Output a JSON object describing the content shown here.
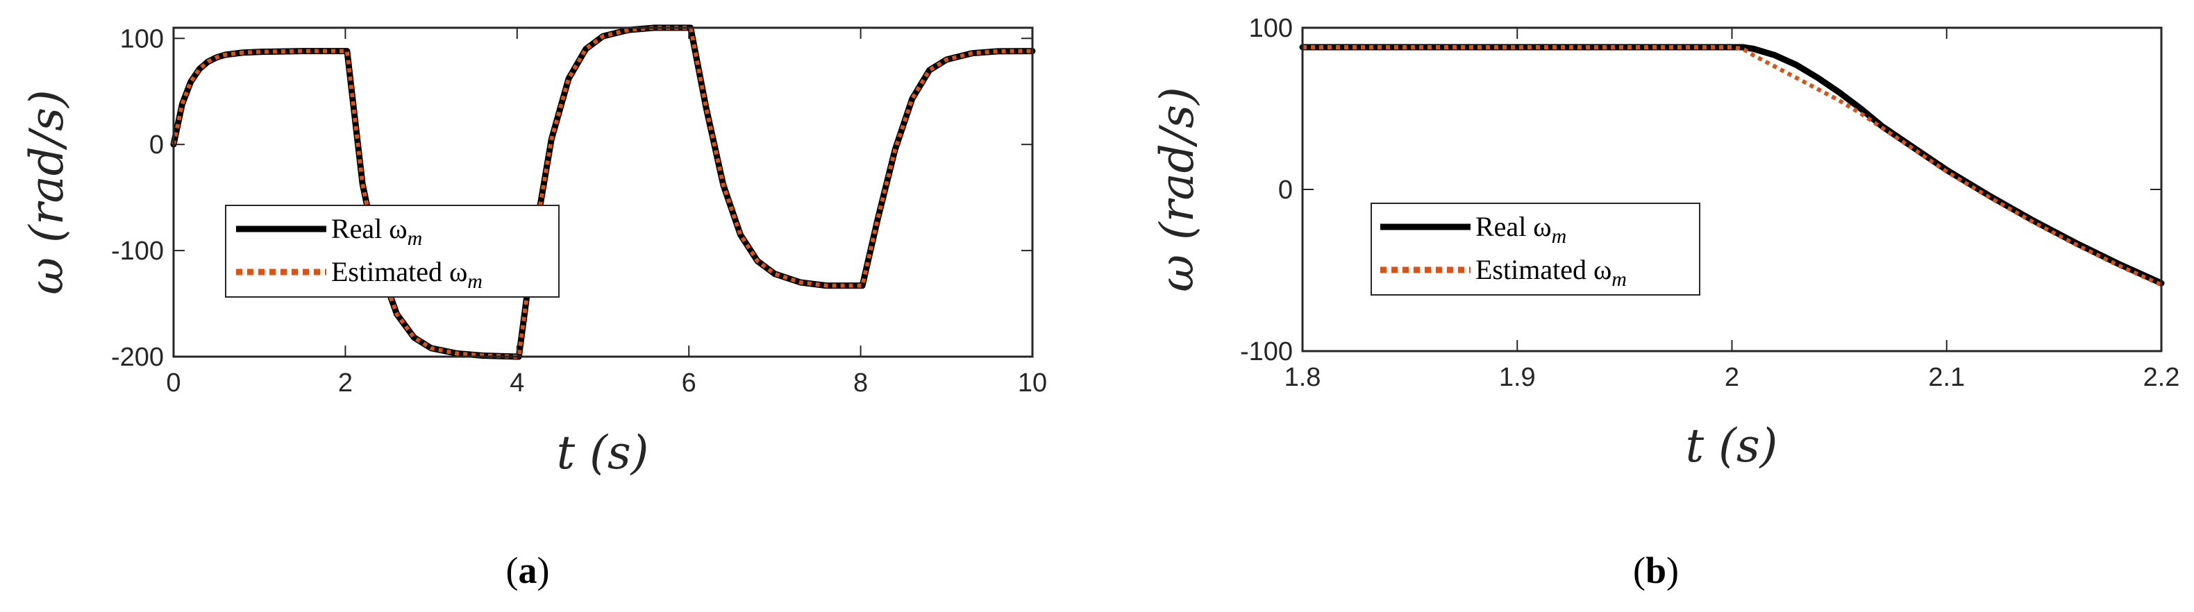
{
  "panels": [
    {
      "label": "(a)",
      "label_letter": "a",
      "xlabel": "t (s)",
      "ylabel": "ω (rad/s)",
      "legend": [
        {
          "text": "Real ω",
          "sub": "m"
        },
        {
          "text": "Estimated ω",
          "sub": "m"
        }
      ]
    },
    {
      "label": "(b)",
      "label_letter": "b",
      "xlabel": "t (s)",
      "ylabel": "ω (rad/s)",
      "legend": [
        {
          "text": "Real ω",
          "sub": "m"
        },
        {
          "text": "Estimated ω",
          "sub": "m"
        }
      ]
    }
  ],
  "colors": {
    "real": "#000000",
    "estimated": "#d95319",
    "axes": "#262626"
  },
  "chart_data": [
    {
      "type": "line",
      "xlabel": "t (s)",
      "ylabel": "ω (rad/s)",
      "xlim": [
        0,
        10
      ],
      "ylim": [
        -200,
        110
      ],
      "xticks": [
        0,
        2,
        4,
        6,
        8,
        10
      ],
      "yticks": [
        -200,
        -100,
        0,
        100
      ],
      "legend_position": "center-left",
      "grid": false,
      "series": [
        {
          "name": "Real ω_m",
          "style": "solid",
          "x": [
            0,
            0.1,
            0.2,
            0.3,
            0.4,
            0.5,
            0.6,
            0.8,
            1.0,
            1.5,
            2.0,
            2.02,
            2.2,
            2.4,
            2.6,
            2.8,
            3.0,
            3.3,
            3.6,
            4.0,
            4.02,
            4.2,
            4.4,
            4.6,
            4.8,
            5.0,
            5.3,
            5.6,
            6.0,
            6.02,
            6.2,
            6.4,
            6.6,
            6.8,
            7.0,
            7.3,
            7.6,
            8.0,
            8.02,
            8.2,
            8.4,
            8.6,
            8.8,
            9.0,
            9.3,
            9.6,
            10.0
          ],
          "y": [
            0,
            38,
            59,
            71,
            78,
            82,
            84.5,
            86.5,
            87.3,
            88,
            88,
            88,
            -37,
            -115,
            -160,
            -182,
            -192,
            -197,
            -199,
            -200,
            -200,
            -90,
            5,
            62,
            90,
            102,
            108,
            110,
            110,
            110,
            35,
            -38,
            -85,
            -110,
            -122,
            -130,
            -133,
            -133,
            -133,
            -70,
            -5,
            43,
            70,
            80,
            86,
            87.8,
            88
          ]
        },
        {
          "name": "Estimated ω_m",
          "style": "dotted",
          "x": [
            0,
            0.1,
            0.2,
            0.3,
            0.4,
            0.5,
            0.6,
            0.8,
            1.0,
            1.5,
            2.0,
            2.02,
            2.2,
            2.4,
            2.6,
            2.8,
            3.0,
            3.3,
            3.6,
            4.0,
            4.02,
            4.2,
            4.4,
            4.6,
            4.8,
            5.0,
            5.3,
            5.6,
            6.0,
            6.02,
            6.2,
            6.4,
            6.6,
            6.8,
            7.0,
            7.3,
            7.6,
            8.0,
            8.02,
            8.2,
            8.4,
            8.6,
            8.8,
            9.0,
            9.3,
            9.6,
            10.0
          ],
          "y": [
            0,
            38,
            59,
            71,
            78,
            82,
            84.5,
            86.5,
            87.3,
            88,
            88,
            88,
            -37,
            -115,
            -160,
            -182,
            -192,
            -197,
            -199,
            -200,
            -200,
            -90,
            5,
            62,
            90,
            102,
            108,
            110,
            110,
            110,
            35,
            -38,
            -85,
            -110,
            -122,
            -130,
            -133,
            -133,
            -133,
            -70,
            -5,
            43,
            70,
            80,
            86,
            87.8,
            88
          ]
        }
      ]
    },
    {
      "type": "line",
      "xlabel": "t (s)",
      "ylabel": "ω (rad/s)",
      "xlim": [
        1.8,
        2.2
      ],
      "ylim": [
        -100,
        100
      ],
      "xticks": [
        1.8,
        1.9,
        2.0,
        2.1,
        2.2
      ],
      "yticks": [
        -100,
        0,
        100
      ],
      "legend_position": "center-left",
      "grid": false,
      "series": [
        {
          "name": "Real ω_m",
          "style": "solid",
          "x": [
            1.8,
            1.9,
            2.0,
            2.005,
            2.01,
            2.02,
            2.03,
            2.04,
            2.05,
            2.06,
            2.07,
            2.08,
            2.1,
            2.12,
            2.14,
            2.16,
            2.18,
            2.2
          ],
          "y": [
            88,
            88,
            88,
            88,
            87,
            83,
            77,
            69,
            60,
            50,
            39,
            30,
            12,
            -4,
            -19,
            -33,
            -46,
            -58
          ]
        },
        {
          "name": "Estimated ω_m",
          "style": "dotted",
          "x": [
            1.8,
            1.9,
            2.0,
            2.005,
            2.01,
            2.02,
            2.03,
            2.04,
            2.05,
            2.06,
            2.07,
            2.08,
            2.1,
            2.12,
            2.14,
            2.16,
            2.18,
            2.2
          ],
          "y": [
            88,
            88,
            88,
            87,
            83,
            76,
            69,
            62,
            55,
            47,
            38,
            29,
            11,
            -5,
            -20,
            -34,
            -47,
            -59
          ]
        }
      ]
    }
  ]
}
